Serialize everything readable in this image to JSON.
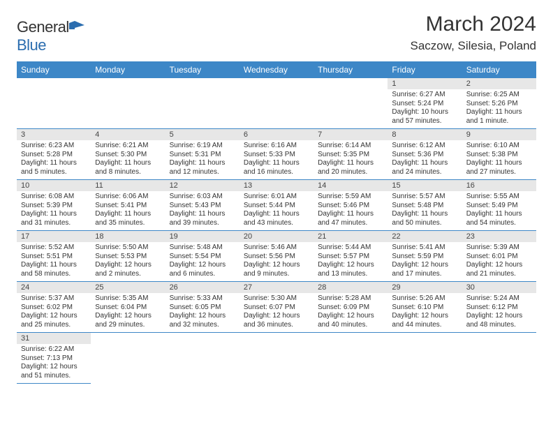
{
  "brand": {
    "name_a": "General",
    "name_b": "Blue"
  },
  "title": "March 2024",
  "location": "Saczow, Silesia, Poland",
  "colors": {
    "header_bg": "#3d87c7",
    "daynum_bg": "#e7e7e7",
    "row_divider": "#3d87c7",
    "brand_blue": "#2b6daf"
  },
  "fonts": {
    "title_size": 30,
    "location_size": 17,
    "dow_size": 12,
    "daynum_size": 11,
    "data_size": 10
  },
  "dow": [
    "Sunday",
    "Monday",
    "Tuesday",
    "Wednesday",
    "Thursday",
    "Friday",
    "Saturday"
  ],
  "weeks": [
    [
      null,
      null,
      null,
      null,
      null,
      {
        "n": "1",
        "sr": "Sunrise: 6:27 AM",
        "ss": "Sunset: 5:24 PM",
        "dl": "Daylight: 10 hours and 57 minutes."
      },
      {
        "n": "2",
        "sr": "Sunrise: 6:25 AM",
        "ss": "Sunset: 5:26 PM",
        "dl": "Daylight: 11 hours and 1 minute."
      }
    ],
    [
      {
        "n": "3",
        "sr": "Sunrise: 6:23 AM",
        "ss": "Sunset: 5:28 PM",
        "dl": "Daylight: 11 hours and 5 minutes."
      },
      {
        "n": "4",
        "sr": "Sunrise: 6:21 AM",
        "ss": "Sunset: 5:30 PM",
        "dl": "Daylight: 11 hours and 8 minutes."
      },
      {
        "n": "5",
        "sr": "Sunrise: 6:19 AM",
        "ss": "Sunset: 5:31 PM",
        "dl": "Daylight: 11 hours and 12 minutes."
      },
      {
        "n": "6",
        "sr": "Sunrise: 6:16 AM",
        "ss": "Sunset: 5:33 PM",
        "dl": "Daylight: 11 hours and 16 minutes."
      },
      {
        "n": "7",
        "sr": "Sunrise: 6:14 AM",
        "ss": "Sunset: 5:35 PM",
        "dl": "Daylight: 11 hours and 20 minutes."
      },
      {
        "n": "8",
        "sr": "Sunrise: 6:12 AM",
        "ss": "Sunset: 5:36 PM",
        "dl": "Daylight: 11 hours and 24 minutes."
      },
      {
        "n": "9",
        "sr": "Sunrise: 6:10 AM",
        "ss": "Sunset: 5:38 PM",
        "dl": "Daylight: 11 hours and 27 minutes."
      }
    ],
    [
      {
        "n": "10",
        "sr": "Sunrise: 6:08 AM",
        "ss": "Sunset: 5:39 PM",
        "dl": "Daylight: 11 hours and 31 minutes."
      },
      {
        "n": "11",
        "sr": "Sunrise: 6:06 AM",
        "ss": "Sunset: 5:41 PM",
        "dl": "Daylight: 11 hours and 35 minutes."
      },
      {
        "n": "12",
        "sr": "Sunrise: 6:03 AM",
        "ss": "Sunset: 5:43 PM",
        "dl": "Daylight: 11 hours and 39 minutes."
      },
      {
        "n": "13",
        "sr": "Sunrise: 6:01 AM",
        "ss": "Sunset: 5:44 PM",
        "dl": "Daylight: 11 hours and 43 minutes."
      },
      {
        "n": "14",
        "sr": "Sunrise: 5:59 AM",
        "ss": "Sunset: 5:46 PM",
        "dl": "Daylight: 11 hours and 47 minutes."
      },
      {
        "n": "15",
        "sr": "Sunrise: 5:57 AM",
        "ss": "Sunset: 5:48 PM",
        "dl": "Daylight: 11 hours and 50 minutes."
      },
      {
        "n": "16",
        "sr": "Sunrise: 5:55 AM",
        "ss": "Sunset: 5:49 PM",
        "dl": "Daylight: 11 hours and 54 minutes."
      }
    ],
    [
      {
        "n": "17",
        "sr": "Sunrise: 5:52 AM",
        "ss": "Sunset: 5:51 PM",
        "dl": "Daylight: 11 hours and 58 minutes."
      },
      {
        "n": "18",
        "sr": "Sunrise: 5:50 AM",
        "ss": "Sunset: 5:53 PM",
        "dl": "Daylight: 12 hours and 2 minutes."
      },
      {
        "n": "19",
        "sr": "Sunrise: 5:48 AM",
        "ss": "Sunset: 5:54 PM",
        "dl": "Daylight: 12 hours and 6 minutes."
      },
      {
        "n": "20",
        "sr": "Sunrise: 5:46 AM",
        "ss": "Sunset: 5:56 PM",
        "dl": "Daylight: 12 hours and 9 minutes."
      },
      {
        "n": "21",
        "sr": "Sunrise: 5:44 AM",
        "ss": "Sunset: 5:57 PM",
        "dl": "Daylight: 12 hours and 13 minutes."
      },
      {
        "n": "22",
        "sr": "Sunrise: 5:41 AM",
        "ss": "Sunset: 5:59 PM",
        "dl": "Daylight: 12 hours and 17 minutes."
      },
      {
        "n": "23",
        "sr": "Sunrise: 5:39 AM",
        "ss": "Sunset: 6:01 PM",
        "dl": "Daylight: 12 hours and 21 minutes."
      }
    ],
    [
      {
        "n": "24",
        "sr": "Sunrise: 5:37 AM",
        "ss": "Sunset: 6:02 PM",
        "dl": "Daylight: 12 hours and 25 minutes."
      },
      {
        "n": "25",
        "sr": "Sunrise: 5:35 AM",
        "ss": "Sunset: 6:04 PM",
        "dl": "Daylight: 12 hours and 29 minutes."
      },
      {
        "n": "26",
        "sr": "Sunrise: 5:33 AM",
        "ss": "Sunset: 6:05 PM",
        "dl": "Daylight: 12 hours and 32 minutes."
      },
      {
        "n": "27",
        "sr": "Sunrise: 5:30 AM",
        "ss": "Sunset: 6:07 PM",
        "dl": "Daylight: 12 hours and 36 minutes."
      },
      {
        "n": "28",
        "sr": "Sunrise: 5:28 AM",
        "ss": "Sunset: 6:09 PM",
        "dl": "Daylight: 12 hours and 40 minutes."
      },
      {
        "n": "29",
        "sr": "Sunrise: 5:26 AM",
        "ss": "Sunset: 6:10 PM",
        "dl": "Daylight: 12 hours and 44 minutes."
      },
      {
        "n": "30",
        "sr": "Sunrise: 5:24 AM",
        "ss": "Sunset: 6:12 PM",
        "dl": "Daylight: 12 hours and 48 minutes."
      }
    ],
    [
      {
        "n": "31",
        "sr": "Sunrise: 6:22 AM",
        "ss": "Sunset: 7:13 PM",
        "dl": "Daylight: 12 hours and 51 minutes."
      },
      null,
      null,
      null,
      null,
      null,
      null
    ]
  ]
}
